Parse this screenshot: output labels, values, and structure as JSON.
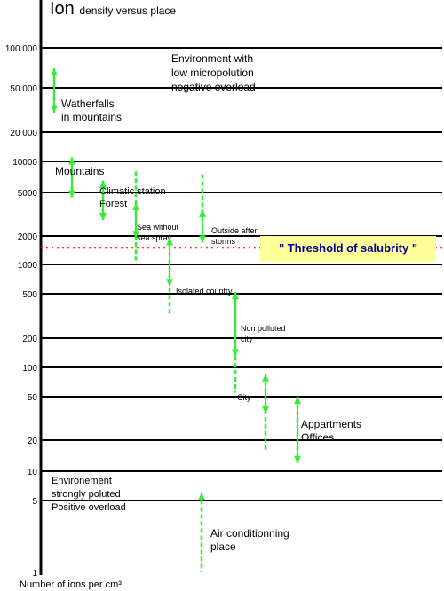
{
  "chart_data": {
    "type": "scatter",
    "title_big": "Ion",
    "title_rest": "density versus place",
    "xlabel": "Number of ions per cm³",
    "y_scale": "log",
    "ylim": [
      1,
      100000
    ],
    "grid": "horizontal",
    "y_ticks": [
      "100 000",
      "50 000",
      "20 000",
      "10000",
      "5000",
      "2000",
      "1000",
      "500",
      "200",
      "100",
      "50",
      "20",
      "10",
      "5",
      "1"
    ],
    "y_tick_values": [
      100000,
      50000,
      20000,
      10000,
      5000,
      2000,
      1000,
      500,
      200,
      100,
      50,
      20,
      10,
      5,
      1
    ],
    "threshold": {
      "label": "\" Threshold of salubrity \"",
      "value": 1500
    },
    "ranges": [
      {
        "name": "Watherfalls in mountains",
        "label_lines": [
          "Watherfalls",
          "in mountains"
        ],
        "y_min": 30000,
        "y_max": 70000,
        "solid_min": 30000,
        "solid_max": 70000
      },
      {
        "name": "Mountains",
        "label_lines": [
          "Mountains"
        ],
        "y_min": 4500,
        "y_max": 11000,
        "solid_min": 4500,
        "solid_max": 11000
      },
      {
        "name": "Climatic station Forest",
        "label_lines": [
          "Climatic station",
          "Forest"
        ],
        "y_min": 2800,
        "y_max": 6500,
        "solid_min": 2800,
        "solid_max": 6500
      },
      {
        "name": "Sea without sea spray",
        "label_lines": [
          "Sea without",
          "sea spray"
        ],
        "y_min": 1100,
        "y_max": 8000,
        "solid_min": 1900,
        "solid_max": 4000
      },
      {
        "name": "Outside after storms",
        "label_lines": [
          "Outside after",
          "storms"
        ],
        "y_min": 1700,
        "y_max": 7500,
        "solid_min": 1700,
        "solid_max": 3500
      },
      {
        "name": "Isolated country",
        "label_lines": [
          "Isolated country"
        ],
        "y_min": 330,
        "y_max": 1900,
        "solid_min": 600,
        "solid_max": 1900
      },
      {
        "name": "Non polluted city",
        "label_lines": [
          "Non polluted",
          "city"
        ],
        "y_min": 55,
        "y_max": 520,
        "solid_min": 130,
        "solid_max": 520
      },
      {
        "name": "City",
        "label_lines": [
          "City"
        ],
        "y_min": 16,
        "y_max": 85,
        "solid_min": 35,
        "solid_max": 85
      },
      {
        "name": "Appartments Offices",
        "label_lines": [
          "Appartments",
          "Offices"
        ],
        "y_min": 12,
        "y_max": 50,
        "solid_min": 12,
        "solid_max": 50
      },
      {
        "name": "Air conditionning place",
        "label_lines": [
          "Air conditionning",
          "place"
        ],
        "y_min": 1,
        "y_max": 6,
        "solid_min": 1,
        "solid_max": 1
      }
    ],
    "annotations": [
      {
        "lines": [
          "Environment with",
          "low micropolution",
          "negative overload"
        ]
      },
      {
        "lines": [
          "Environement",
          "strongly poluted",
          "Positive overload"
        ]
      }
    ],
    "colors": {
      "arrow": "#33ee33",
      "grid": "#000000",
      "threshold_line": "#ee0000",
      "threshold_box": "#ffff99",
      "threshold_text": "#000099"
    }
  }
}
